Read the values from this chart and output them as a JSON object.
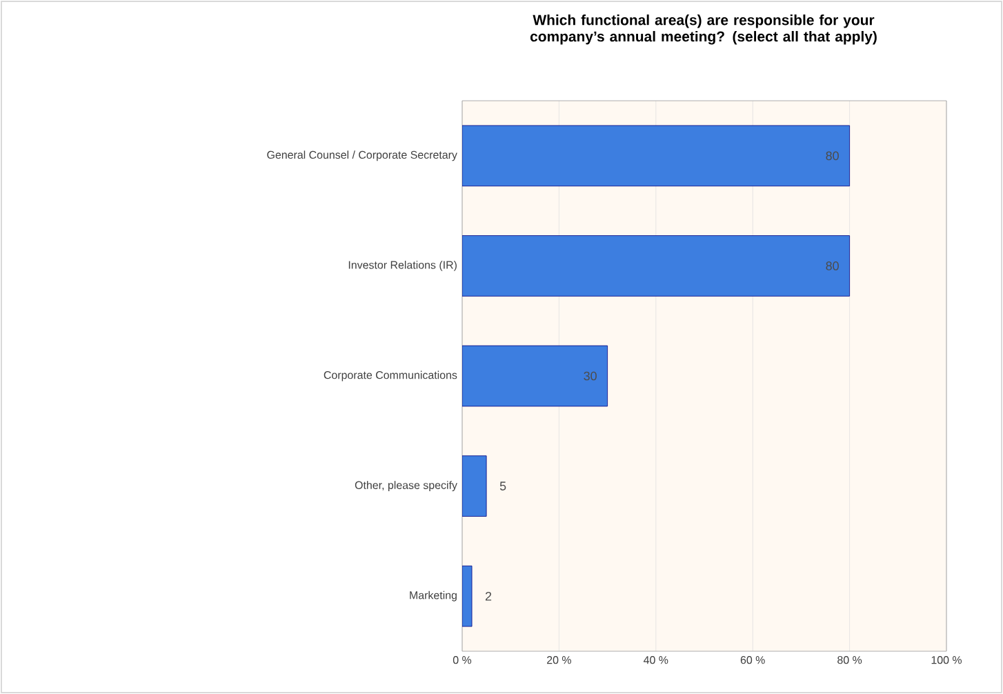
{
  "chart_data": {
    "type": "bar",
    "orientation": "horizontal",
    "title": "Which functional area(s) are responsible for your company’s annual meeting? (select all that apply)",
    "categories": [
      "General Counsel / Corporate Secretary",
      "Investor Relations (IR)",
      "Corporate Communications",
      "Other, please specify",
      "Marketing"
    ],
    "values": [
      80,
      80,
      30,
      5,
      2
    ],
    "color": "#3d7ee0",
    "data_labels": true,
    "xlim": [
      0,
      100
    ],
    "xticks": [
      {
        "value": 0,
        "label": "0 %"
      },
      {
        "value": 20,
        "label": "20 %"
      },
      {
        "value": 40,
        "label": "40 %"
      },
      {
        "value": 60,
        "label": "60 %"
      },
      {
        "value": 80,
        "label": "80 %"
      },
      {
        "value": 100,
        "label": "100 %"
      }
    ],
    "grid": "x"
  }
}
